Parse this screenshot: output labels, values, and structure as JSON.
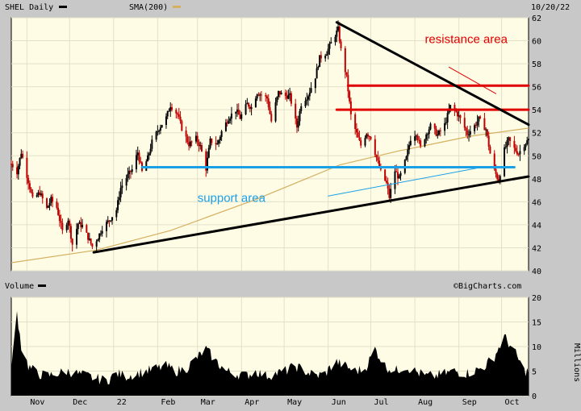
{
  "header": {
    "symbol_label": "SHEL Daily",
    "sma_label": "SMA(200)",
    "date": "10/20/22",
    "volume_label": "Volume",
    "watermark": "©BigCharts.com",
    "volume_units": "Millions"
  },
  "colors": {
    "panel_bg": "#fffce6",
    "frame_bg": "#c8c8c8",
    "grid": "#e3e0c8",
    "up_candle": "#000000",
    "down_candle": "#c00000",
    "sma": "#d4b060",
    "resistance": "#e00000",
    "support": "#1aa0e6",
    "trendline": "#000000"
  },
  "chart_data": [
    {
      "type": "candlestick",
      "title": "SHEL Daily",
      "ylim": [
        40,
        62
      ],
      "yticks": [
        40,
        42,
        44,
        46,
        48,
        50,
        52,
        54,
        56,
        58,
        60,
        62
      ],
      "x_labels": [
        "Nov",
        "Dec",
        "22",
        "Feb",
        "Mar",
        "Apr",
        "May",
        "Jun",
        "Jul",
        "Aug",
        "Sep",
        "Oct"
      ],
      "x_start_date": "2021-10-21",
      "x_end_date": "2022-10-20",
      "grid": true,
      "close_series": [
        [
          "2021-10-21",
          49.3
        ],
        [
          "2021-10-25",
          48.6
        ],
        [
          "2021-10-28",
          50.3
        ],
        [
          "2021-11-02",
          47.8
        ],
        [
          "2021-11-05",
          46.2
        ],
        [
          "2021-11-10",
          46.8
        ],
        [
          "2021-11-15",
          45.4
        ],
        [
          "2021-11-18",
          46.2
        ],
        [
          "2021-11-22",
          45.5
        ],
        [
          "2021-11-26",
          43.4
        ],
        [
          "2021-11-30",
          44.5
        ],
        [
          "2021-12-03",
          42.3
        ],
        [
          "2021-12-07",
          44.1
        ],
        [
          "2021-12-10",
          43.9
        ],
        [
          "2021-12-14",
          42.9
        ],
        [
          "2021-12-17",
          42.1
        ],
        [
          "2021-12-21",
          42.9
        ],
        [
          "2021-12-24",
          43.7
        ],
        [
          "2021-12-29",
          44.4
        ],
        [
          "2022-01-03",
          45.3
        ],
        [
          "2022-01-06",
          47.2
        ],
        [
          "2022-01-10",
          48.1
        ],
        [
          "2022-01-14",
          48.8
        ],
        [
          "2022-01-18",
          50.3
        ],
        [
          "2022-01-21",
          48.6
        ],
        [
          "2022-01-25",
          49.8
        ],
        [
          "2022-01-28",
          51.2
        ],
        [
          "2022-02-02",
          52.4
        ],
        [
          "2022-02-07",
          53.3
        ],
        [
          "2022-02-10",
          54.4
        ],
        [
          "2022-02-15",
          53.6
        ],
        [
          "2022-02-18",
          52.4
        ],
        [
          "2022-02-23",
          51.0
        ],
        [
          "2022-02-28",
          51.5
        ],
        [
          "2022-03-03",
          50.8
        ],
        [
          "2022-03-07",
          48.9
        ],
        [
          "2022-03-10",
          51.3
        ],
        [
          "2022-03-15",
          51.0
        ],
        [
          "2022-03-18",
          52.1
        ],
        [
          "2022-03-23",
          53.3
        ],
        [
          "2022-03-28",
          54.0
        ],
        [
          "2022-03-31",
          53.3
        ],
        [
          "2022-04-05",
          54.5
        ],
        [
          "2022-04-08",
          54.2
        ],
        [
          "2022-04-12",
          55.5
        ],
        [
          "2022-04-19",
          55.0
        ],
        [
          "2022-04-22",
          53.0
        ],
        [
          "2022-04-27",
          55.5
        ],
        [
          "2022-05-02",
          55.2
        ],
        [
          "2022-05-05",
          55.2
        ],
        [
          "2022-05-10",
          52.5
        ],
        [
          "2022-05-13",
          54.5
        ],
        [
          "2022-05-18",
          55.3
        ],
        [
          "2022-05-23",
          56.9
        ],
        [
          "2022-05-26",
          58.5
        ],
        [
          "2022-05-31",
          59.0
        ],
        [
          "2022-06-03",
          59.8
        ],
        [
          "2022-06-08",
          61.0
        ],
        [
          "2022-06-10",
          59.2
        ],
        [
          "2022-06-14",
          56.8
        ],
        [
          "2022-06-17",
          53.5
        ],
        [
          "2022-06-22",
          51.5
        ],
        [
          "2022-06-24",
          50.9
        ],
        [
          "2022-06-28",
          52.0
        ],
        [
          "2022-07-01",
          51.6
        ],
        [
          "2022-07-06",
          49.4
        ],
        [
          "2022-07-08",
          48.6
        ],
        [
          "2022-07-12",
          47.6
        ],
        [
          "2022-07-14",
          46.4
        ],
        [
          "2022-07-18",
          48.7
        ],
        [
          "2022-07-21",
          48.0
        ],
        [
          "2022-07-26",
          49.8
        ],
        [
          "2022-07-29",
          51.5
        ],
        [
          "2022-08-02",
          52.0
        ],
        [
          "2022-08-05",
          50.7
        ],
        [
          "2022-08-09",
          51.9
        ],
        [
          "2022-08-12",
          52.6
        ],
        [
          "2022-08-17",
          51.8
        ],
        [
          "2022-08-22",
          52.7
        ],
        [
          "2022-08-26",
          54.3
        ],
        [
          "2022-08-30",
          53.8
        ],
        [
          "2022-09-02",
          53.2
        ],
        [
          "2022-09-07",
          51.9
        ],
        [
          "2022-09-12",
          52.6
        ],
        [
          "2022-09-15",
          53.2
        ],
        [
          "2022-09-20",
          52.3
        ],
        [
          "2022-09-23",
          50.2
        ],
        [
          "2022-09-26",
          48.7
        ],
        [
          "2022-09-29",
          47.8
        ],
        [
          "2022-10-03",
          50.5
        ],
        [
          "2022-10-06",
          51.4
        ],
        [
          "2022-10-10",
          50.6
        ],
        [
          "2022-10-13",
          50.2
        ],
        [
          "2022-10-17",
          51.0
        ],
        [
          "2022-10-20",
          51.4
        ]
      ],
      "sma200": [
        [
          "2021-10-21",
          40.7
        ],
        [
          "2021-12-20",
          41.8
        ],
        [
          "2022-02-10",
          43.5
        ],
        [
          "2022-04-11",
          46.2
        ],
        [
          "2022-06-09",
          49.2
        ],
        [
          "2022-07-20",
          50.4
        ],
        [
          "2022-09-09",
          51.7
        ],
        [
          "2022-10-20",
          52.4
        ]
      ],
      "annotations": [
        {
          "kind": "line",
          "name": "resistance-line-upper",
          "color": "#e00000",
          "points": [
            [
              "2022-06-15",
              56.1
            ],
            [
              "2022-10-20",
              56.1
            ]
          ]
        },
        {
          "kind": "line",
          "name": "resistance-line-lower",
          "color": "#e00000",
          "points": [
            [
              "2022-06-07",
              54.0
            ],
            [
              "2022-10-20",
              54.0
            ]
          ]
        },
        {
          "kind": "line",
          "name": "support-line",
          "color": "#1aa0e6",
          "points": [
            [
              "2022-01-21",
              49.0
            ],
            [
              "2022-10-10",
              49.0
            ]
          ]
        },
        {
          "kind": "line",
          "name": "support-pointer",
          "color": "#1aa0e6",
          "thin": true,
          "points": [
            [
              "2022-06-01",
              46.5
            ],
            [
              "2022-09-17",
              49.0
            ]
          ]
        },
        {
          "kind": "line",
          "name": "rising-trendline",
          "color": "#000000",
          "points": [
            [
              "2021-12-18",
              41.6
            ],
            [
              "2022-10-20",
              48.2
            ]
          ]
        },
        {
          "kind": "line",
          "name": "falling-trendline",
          "color": "#000000",
          "points": [
            [
              "2022-06-07",
              61.6
            ],
            [
              "2022-10-20",
              52.7
            ]
          ]
        },
        {
          "kind": "line",
          "name": "resistance-pointer",
          "color": "#e00000",
          "thin": true,
          "points": [
            [
              "2022-08-25",
              57.7
            ],
            [
              "2022-09-27",
              55.4
            ]
          ]
        }
      ],
      "text_labels": [
        {
          "name": "resistance-area-label",
          "text": "resistance area",
          "color": "#e00000",
          "at": [
            "2022-08-08",
            59.8
          ]
        },
        {
          "name": "support-area-label",
          "text": "support area",
          "color": "#1aa0e6",
          "at": [
            "2022-03-01",
            46.0
          ]
        }
      ]
    },
    {
      "type": "bar",
      "title": "Volume",
      "ylabel": "Millions",
      "ylim": [
        0,
        20
      ],
      "yticks": [
        0,
        5,
        10,
        15,
        20
      ],
      "volume_series": [
        [
          "2021-10-21",
          5
        ],
        [
          "2021-10-25",
          17
        ],
        [
          "2021-10-28",
          10
        ],
        [
          "2021-11-02",
          6
        ],
        [
          "2021-11-08",
          4.5
        ],
        [
          "2021-11-15",
          4
        ],
        [
          "2021-11-22",
          4.5
        ],
        [
          "2021-11-29",
          5
        ],
        [
          "2021-12-06",
          4.5
        ],
        [
          "2021-12-13",
          4
        ],
        [
          "2021-12-20",
          3.5
        ],
        [
          "2021-12-27",
          3
        ],
        [
          "2022-01-03",
          4.5
        ],
        [
          "2022-01-10",
          4
        ],
        [
          "2022-01-17",
          4.5
        ],
        [
          "2022-01-24",
          5
        ],
        [
          "2022-01-31",
          5.5
        ],
        [
          "2022-02-07",
          6
        ],
        [
          "2022-02-14",
          5
        ],
        [
          "2022-02-21",
          5.5
        ],
        [
          "2022-02-28",
          7.5
        ],
        [
          "2022-03-07",
          9.5
        ],
        [
          "2022-03-14",
          7
        ],
        [
          "2022-03-21",
          5
        ],
        [
          "2022-03-28",
          4.5
        ],
        [
          "2022-04-04",
          4
        ],
        [
          "2022-04-11",
          5
        ],
        [
          "2022-04-18",
          4
        ],
        [
          "2022-04-25",
          4.5
        ],
        [
          "2022-05-02",
          5
        ],
        [
          "2022-05-09",
          6
        ],
        [
          "2022-05-16",
          5
        ],
        [
          "2022-05-23",
          4
        ],
        [
          "2022-05-30",
          4.5
        ],
        [
          "2022-06-06",
          7
        ],
        [
          "2022-06-13",
          6
        ],
        [
          "2022-06-20",
          5
        ],
        [
          "2022-06-27",
          5.5
        ],
        [
          "2022-07-04",
          9.5
        ],
        [
          "2022-07-11",
          6
        ],
        [
          "2022-07-18",
          5
        ],
        [
          "2022-07-25",
          6
        ],
        [
          "2022-08-01",
          5
        ],
        [
          "2022-08-08",
          4
        ],
        [
          "2022-08-15",
          4
        ],
        [
          "2022-08-22",
          4.5
        ],
        [
          "2022-08-29",
          5
        ],
        [
          "2022-09-05",
          4.5
        ],
        [
          "2022-09-12",
          5
        ],
        [
          "2022-09-19",
          6
        ],
        [
          "2022-09-26",
          8
        ],
        [
          "2022-10-03",
          12
        ],
        [
          "2022-10-10",
          9
        ],
        [
          "2022-10-17",
          5
        ]
      ]
    }
  ]
}
